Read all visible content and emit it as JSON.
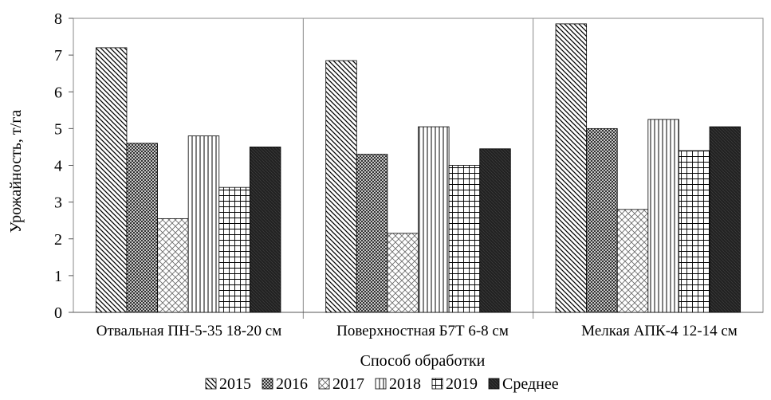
{
  "chart_data": {
    "type": "bar",
    "title": "",
    "xlabel": "Способ обработки",
    "ylabel": "Урожайность, т/га",
    "ylim": [
      0,
      8
    ],
    "yticks": [
      "0",
      "1",
      "2",
      "3",
      "4",
      "5",
      "6",
      "7",
      "8"
    ],
    "grid": false,
    "legend_position": "bottom",
    "categories": [
      "Отвальная ПН-5-35 18-20 см",
      "Поверхностная Б7Т 6-8 см",
      "Мелкая АПК-4 12-14 см"
    ],
    "series": [
      {
        "name": "2015",
        "pattern": "diag-down",
        "values": [
          7.2,
          6.85,
          7.85
        ]
      },
      {
        "name": "2016",
        "pattern": "crosshatch",
        "values": [
          4.6,
          4.3,
          5.0
        ]
      },
      {
        "name": "2017",
        "pattern": "diag-cross",
        "values": [
          2.55,
          2.15,
          2.8
        ]
      },
      {
        "name": "2018",
        "pattern": "vertical",
        "values": [
          4.8,
          5.05,
          5.25
        ]
      },
      {
        "name": "2019",
        "pattern": "grid",
        "values": [
          3.4,
          4.0,
          4.4
        ]
      },
      {
        "name": "Среднее",
        "pattern": "solid",
        "values": [
          4.5,
          4.45,
          5.05
        ]
      }
    ]
  }
}
